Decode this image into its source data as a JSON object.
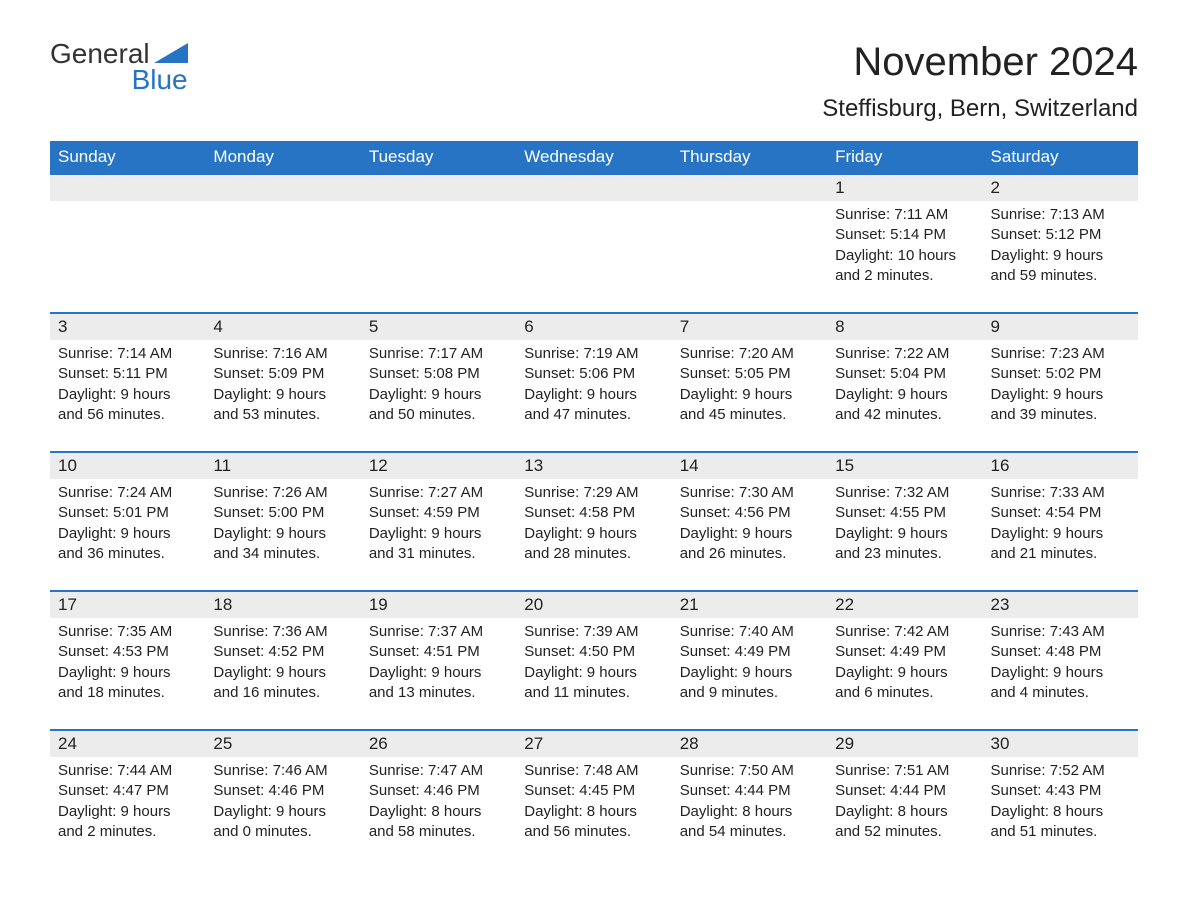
{
  "logo": {
    "top": "General",
    "bottom": "Blue",
    "triangle_color": "#2874c4"
  },
  "header": {
    "month_title": "November 2024",
    "location": "Steffisburg, Bern, Switzerland"
  },
  "colors": {
    "header_bar": "#2874c4",
    "header_text": "#ffffff",
    "daynum_bg": "#ececec",
    "row_border": "#2874c4",
    "text": "#222222",
    "background": "#ffffff"
  },
  "typography": {
    "month_title_fontsize": 40,
    "location_fontsize": 24,
    "dow_fontsize": 17,
    "daynum_fontsize": 17,
    "body_fontsize": 15,
    "font_family": "Arial"
  },
  "days_of_week": [
    "Sunday",
    "Monday",
    "Tuesday",
    "Wednesday",
    "Thursday",
    "Friday",
    "Saturday"
  ],
  "labels": {
    "sunrise": "Sunrise: ",
    "sunset": "Sunset: ",
    "daylight": "Daylight: "
  },
  "weeks": [
    [
      null,
      null,
      null,
      null,
      null,
      {
        "num": "1",
        "sunrise": "7:11 AM",
        "sunset": "5:14 PM",
        "daylight": "10 hours and 2 minutes."
      },
      {
        "num": "2",
        "sunrise": "7:13 AM",
        "sunset": "5:12 PM",
        "daylight": "9 hours and 59 minutes."
      }
    ],
    [
      {
        "num": "3",
        "sunrise": "7:14 AM",
        "sunset": "5:11 PM",
        "daylight": "9 hours and 56 minutes."
      },
      {
        "num": "4",
        "sunrise": "7:16 AM",
        "sunset": "5:09 PM",
        "daylight": "9 hours and 53 minutes."
      },
      {
        "num": "5",
        "sunrise": "7:17 AM",
        "sunset": "5:08 PM",
        "daylight": "9 hours and 50 minutes."
      },
      {
        "num": "6",
        "sunrise": "7:19 AM",
        "sunset": "5:06 PM",
        "daylight": "9 hours and 47 minutes."
      },
      {
        "num": "7",
        "sunrise": "7:20 AM",
        "sunset": "5:05 PM",
        "daylight": "9 hours and 45 minutes."
      },
      {
        "num": "8",
        "sunrise": "7:22 AM",
        "sunset": "5:04 PM",
        "daylight": "9 hours and 42 minutes."
      },
      {
        "num": "9",
        "sunrise": "7:23 AM",
        "sunset": "5:02 PM",
        "daylight": "9 hours and 39 minutes."
      }
    ],
    [
      {
        "num": "10",
        "sunrise": "7:24 AM",
        "sunset": "5:01 PM",
        "daylight": "9 hours and 36 minutes."
      },
      {
        "num": "11",
        "sunrise": "7:26 AM",
        "sunset": "5:00 PM",
        "daylight": "9 hours and 34 minutes."
      },
      {
        "num": "12",
        "sunrise": "7:27 AM",
        "sunset": "4:59 PM",
        "daylight": "9 hours and 31 minutes."
      },
      {
        "num": "13",
        "sunrise": "7:29 AM",
        "sunset": "4:58 PM",
        "daylight": "9 hours and 28 minutes."
      },
      {
        "num": "14",
        "sunrise": "7:30 AM",
        "sunset": "4:56 PM",
        "daylight": "9 hours and 26 minutes."
      },
      {
        "num": "15",
        "sunrise": "7:32 AM",
        "sunset": "4:55 PM",
        "daylight": "9 hours and 23 minutes."
      },
      {
        "num": "16",
        "sunrise": "7:33 AM",
        "sunset": "4:54 PM",
        "daylight": "9 hours and 21 minutes."
      }
    ],
    [
      {
        "num": "17",
        "sunrise": "7:35 AM",
        "sunset": "4:53 PM",
        "daylight": "9 hours and 18 minutes."
      },
      {
        "num": "18",
        "sunrise": "7:36 AM",
        "sunset": "4:52 PM",
        "daylight": "9 hours and 16 minutes."
      },
      {
        "num": "19",
        "sunrise": "7:37 AM",
        "sunset": "4:51 PM",
        "daylight": "9 hours and 13 minutes."
      },
      {
        "num": "20",
        "sunrise": "7:39 AM",
        "sunset": "4:50 PM",
        "daylight": "9 hours and 11 minutes."
      },
      {
        "num": "21",
        "sunrise": "7:40 AM",
        "sunset": "4:49 PM",
        "daylight": "9 hours and 9 minutes."
      },
      {
        "num": "22",
        "sunrise": "7:42 AM",
        "sunset": "4:49 PM",
        "daylight": "9 hours and 6 minutes."
      },
      {
        "num": "23",
        "sunrise": "7:43 AM",
        "sunset": "4:48 PM",
        "daylight": "9 hours and 4 minutes."
      }
    ],
    [
      {
        "num": "24",
        "sunrise": "7:44 AM",
        "sunset": "4:47 PM",
        "daylight": "9 hours and 2 minutes."
      },
      {
        "num": "25",
        "sunrise": "7:46 AM",
        "sunset": "4:46 PM",
        "daylight": "9 hours and 0 minutes."
      },
      {
        "num": "26",
        "sunrise": "7:47 AM",
        "sunset": "4:46 PM",
        "daylight": "8 hours and 58 minutes."
      },
      {
        "num": "27",
        "sunrise": "7:48 AM",
        "sunset": "4:45 PM",
        "daylight": "8 hours and 56 minutes."
      },
      {
        "num": "28",
        "sunrise": "7:50 AM",
        "sunset": "4:44 PM",
        "daylight": "8 hours and 54 minutes."
      },
      {
        "num": "29",
        "sunrise": "7:51 AM",
        "sunset": "4:44 PM",
        "daylight": "8 hours and 52 minutes."
      },
      {
        "num": "30",
        "sunrise": "7:52 AM",
        "sunset": "4:43 PM",
        "daylight": "8 hours and 51 minutes."
      }
    ]
  ]
}
